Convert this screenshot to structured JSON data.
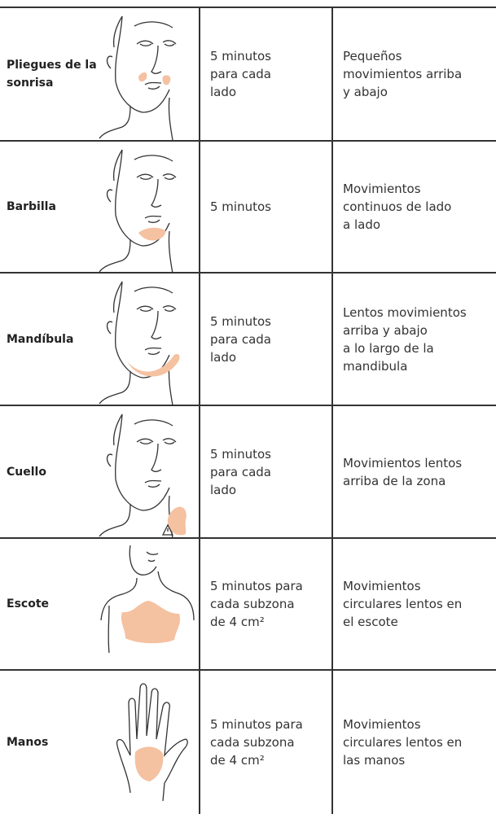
{
  "rows": [
    {
      "area": [
        "Pliegues de la",
        "sonrisa"
      ],
      "time": [
        "5 minutos",
        "para cada",
        "lado"
      ],
      "movement": [
        "Pequeños",
        "movimientos arriba",
        "y abajo"
      ]
    },
    {
      "area": [
        "Barbilla"
      ],
      "time": [
        "5 minutos"
      ],
      "movement": [
        "Movimientos",
        "continuos de lado",
        "a lado"
      ]
    },
    {
      "area": [
        "Mandíbula"
      ],
      "time": [
        "5 minutos",
        "para cada",
        "lado"
      ],
      "movement": [
        "Lentos movimientos",
        "arriba y abajo",
        "a lo largo de la",
        "mandibula"
      ]
    },
    {
      "area": [
        "Cuello"
      ],
      "time": [
        "5 minutos",
        "para cada",
        "lado"
      ],
      "movement": [
        "Movimientos lentos",
        "arriba de la zona"
      ]
    },
    {
      "area": [
        "Escote"
      ],
      "time": [
        "5 minutos para",
        "cada subzona",
        "de 4 cm²"
      ],
      "movement": [
        "Movimientos",
        "circulares lentos en",
        "el escote"
      ]
    },
    {
      "area": [
        "Manos"
      ],
      "time": [
        "5 minutos para",
        "cada subzona",
        "de 4 cm²"
      ],
      "movement": [
        "Movimientos",
        "circulares lentos en",
        "las manos"
      ]
    }
  ]
}
